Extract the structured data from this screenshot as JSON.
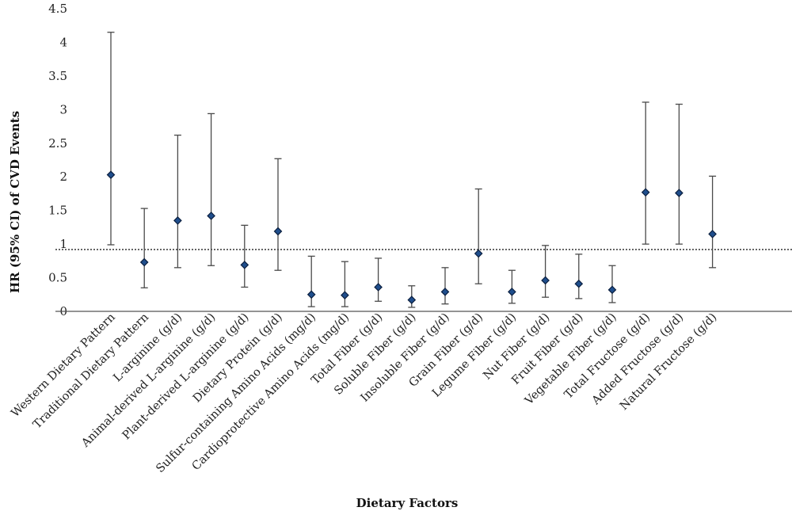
{
  "chart_data": {
    "type": "scatter",
    "title": "",
    "xlabel": "Dietary Factors",
    "ylabel": "HR (95% CI) of CVD Events",
    "ylim": [
      0,
      4.5
    ],
    "yticks": [
      "0",
      "0.5",
      "1",
      "1.5",
      "2",
      "2.5",
      "3",
      "3.5",
      "4",
      "4.5"
    ],
    "reference_line": 0.92,
    "grid": false,
    "marker_color": "#1f4e8c",
    "categories": [
      "Western Dietary Pattern",
      "Traditional Dietary Pattern",
      "L-arginine (g/d)",
      "Animal-derived L-arginine (g/d)",
      "Plant-derived L-arginine (g/d)",
      "Dietary Protein (g/d)",
      "Sulfur-containing Amino Acids (mg/d)",
      "Cardioprotective Amino Acids (mg/d)",
      "Total Fiber (g/d)",
      "Soluble Fiber (g/d)",
      "Insoluble Fiber (g/d)",
      "Grain Fiber (g/d)",
      "Legume Fiber (g/d)",
      "Nut Fiber (g/d)",
      "Fruit Fiber (g/d)",
      "Vegetable Fiber (g/d)",
      "Total Fructose (g/d)",
      "Added Fructose (g/d)",
      "Natural Fructose (g/d)"
    ],
    "hr": [
      2.03,
      0.73,
      1.35,
      1.42,
      0.69,
      1.19,
      0.25,
      0.24,
      0.36,
      0.17,
      0.29,
      0.86,
      0.29,
      0.46,
      0.41,
      0.32,
      1.77,
      1.76,
      1.15
    ],
    "lower": [
      0.99,
      0.35,
      0.65,
      0.68,
      0.36,
      0.61,
      0.07,
      0.07,
      0.15,
      0.06,
      0.11,
      0.41,
      0.12,
      0.21,
      0.19,
      0.13,
      1.0,
      1.0,
      0.65
    ],
    "upper": [
      4.15,
      1.53,
      2.62,
      2.94,
      1.28,
      2.27,
      0.82,
      0.74,
      0.79,
      0.38,
      0.65,
      1.82,
      0.61,
      0.98,
      0.85,
      0.68,
      3.11,
      3.08,
      2.01
    ]
  }
}
